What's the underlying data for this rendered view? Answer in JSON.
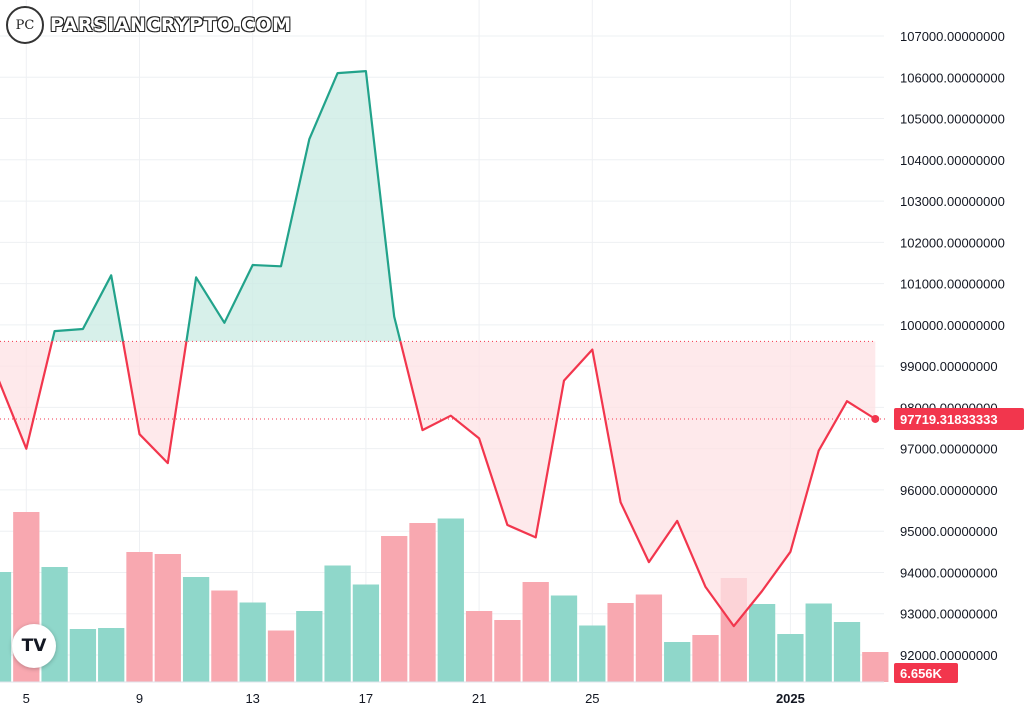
{
  "watermark": {
    "logo_text": "PC",
    "text": "PARSIANCRYPTO.COM"
  },
  "tv_logo": {
    "text": "TV"
  },
  "colors": {
    "up": "#22a38b",
    "down": "#f2364d",
    "up_fill": "#c9ebe3",
    "down_fill": "#fde1e4",
    "vol_up": "#8fd7ca",
    "vol_down": "#f8a8b0",
    "grid": "#eef0f3",
    "axis_text": "#131722"
  },
  "chart_data": {
    "type": "area",
    "baseline": 99600,
    "last_price_label": "97719.31833333",
    "volume_label": "6.656K",
    "ylim": [
      91700,
      107500
    ],
    "y_ticks": [
      "92000.00000000",
      "93000.00000000",
      "94000.00000000",
      "95000.00000000",
      "96000.00000000",
      "97000.00000000",
      "98000.00000000",
      "99000.00000000",
      "100000.00000000",
      "101000.00000000",
      "102000.00000000",
      "103000.00000000",
      "104000.00000000",
      "105000.00000000",
      "106000.00000000",
      "107000.00000000"
    ],
    "y_tick_values": [
      92000,
      93000,
      94000,
      95000,
      96000,
      97000,
      98000,
      99000,
      100000,
      101000,
      102000,
      103000,
      104000,
      105000,
      106000,
      107000
    ],
    "x_ticks": [
      {
        "label": "5",
        "index": 1
      },
      {
        "label": "9",
        "index": 5
      },
      {
        "label": "13",
        "index": 9
      },
      {
        "label": "17",
        "index": 13
      },
      {
        "label": "21",
        "index": 17
      },
      {
        "label": "25",
        "index": 21
      },
      {
        "label": "2025",
        "index": 28
      }
    ],
    "price": [
      98700,
      97000,
      99850,
      99900,
      101200,
      97350,
      96650,
      101150,
      100050,
      101450,
      101420,
      104500,
      106100,
      106150,
      100200,
      97450,
      97800,
      97250,
      95150,
      94850,
      98650,
      99400,
      95700,
      94250,
      95250,
      93650,
      92700,
      93550,
      94500,
      96950,
      98150,
      97720
    ],
    "volume": [
      2200,
      3400,
      2300,
      1060,
      1080,
      2600,
      2560,
      2100,
      1830,
      1590,
      1030,
      1420,
      2330,
      1950,
      2920,
      3180,
      3270,
      1420,
      1240,
      2000,
      1730,
      1130,
      1580,
      1750,
      800,
      940,
      2080,
      1560,
      960,
      1570,
      1200,
      600
    ],
    "volume_dir": [
      "up",
      "down",
      "up",
      "up",
      "up",
      "down",
      "down",
      "up",
      "down",
      "up",
      "down",
      "up",
      "up",
      "up",
      "down",
      "down",
      "up",
      "down",
      "down",
      "down",
      "up",
      "up",
      "down",
      "down",
      "up",
      "down",
      "down",
      "up",
      "up",
      "up",
      "up",
      "down"
    ]
  }
}
